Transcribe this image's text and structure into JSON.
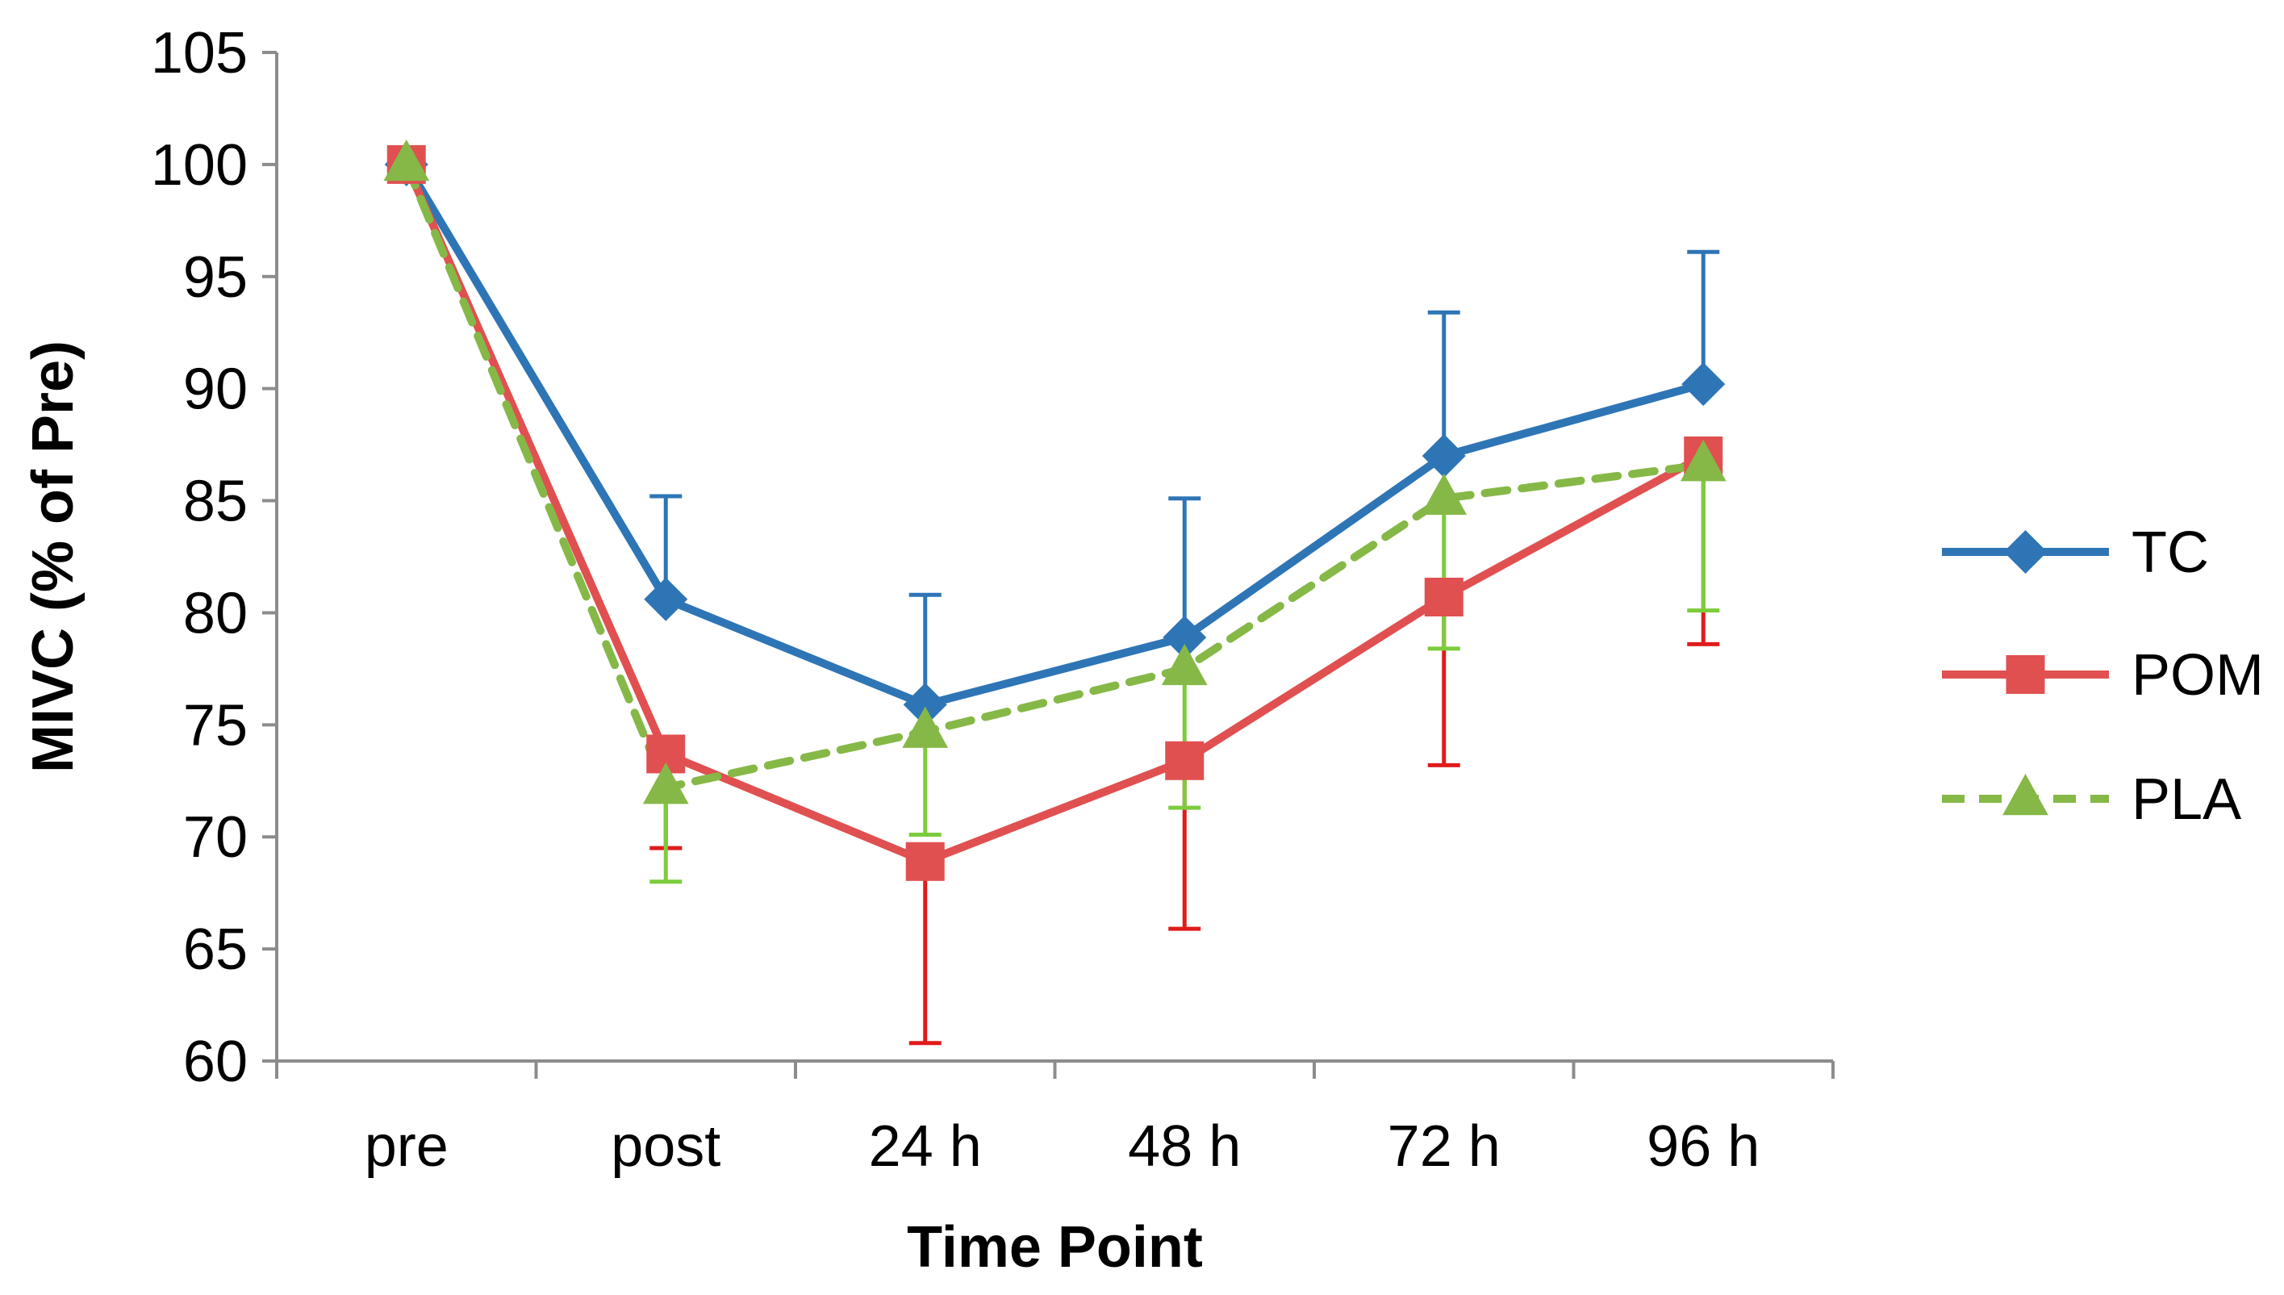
{
  "chart_data": {
    "type": "line",
    "title": "",
    "xlabel": "Time Point",
    "ylabel": "MIVC (% of Pre)",
    "categories": [
      "pre",
      "post",
      "24 h",
      "48 h",
      "72 h",
      "96 h"
    ],
    "ylim": [
      60,
      105
    ],
    "yticks": [
      60,
      65,
      70,
      75,
      80,
      85,
      90,
      95,
      100,
      105
    ],
    "legend_position": "right",
    "series": [
      {
        "name": "TC",
        "color": "#2e75b6",
        "marker": "diamond",
        "dashed": false,
        "values": [
          100,
          80.6,
          75.9,
          78.9,
          87.0,
          90.2
        ],
        "error_upper": [
          null,
          85.2,
          80.8,
          85.1,
          93.4,
          96.1
        ],
        "error_lower": [
          null,
          null,
          null,
          null,
          null,
          null
        ]
      },
      {
        "name": "POM",
        "color": "#e05050",
        "error_color": "#e01b1b",
        "marker": "square",
        "dashed": false,
        "values": [
          100,
          73.7,
          68.9,
          73.4,
          80.7,
          87.0
        ],
        "error_upper": [
          null,
          null,
          null,
          null,
          null,
          null
        ],
        "error_lower": [
          null,
          69.5,
          60.8,
          65.9,
          73.2,
          78.6
        ]
      },
      {
        "name": "PLA",
        "color": "#86b847",
        "error_color": "#7ccc3c",
        "marker": "triangle",
        "dashed": true,
        "values": [
          100,
          72.2,
          74.7,
          77.5,
          85.1,
          86.6
        ],
        "error_upper": [
          null,
          null,
          null,
          null,
          null,
          null
        ],
        "error_lower": [
          null,
          68.0,
          70.1,
          71.3,
          78.4,
          80.1
        ]
      }
    ]
  }
}
